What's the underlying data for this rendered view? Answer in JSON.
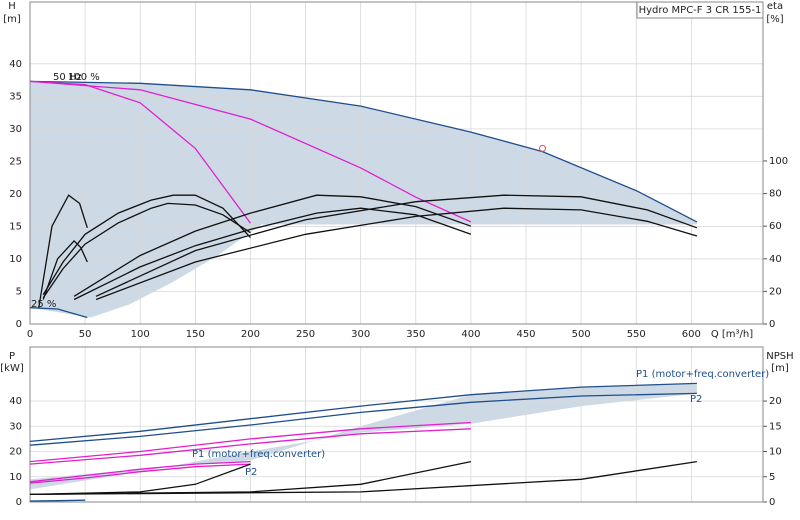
{
  "chart_data": [
    {
      "type": "line",
      "title": "Hydro MPC-F 3 CR 155-1",
      "ylabel": "H",
      "ylabel_unit": "[m]",
      "y2label": "eta",
      "y2label_unit": "[%]",
      "xlabel": "Q [m³/h]",
      "annotations": [
        "50 Hz",
        "100 %",
        "25 %"
      ],
      "xlim": [
        0,
        665
      ],
      "ylim": [
        0,
        49.5
      ],
      "y2lim": [
        0,
        197.5
      ],
      "xticks": [
        0,
        50,
        100,
        150,
        200,
        250,
        300,
        350,
        400,
        450,
        500,
        550,
        600
      ],
      "show_xtick_labels": true,
      "yticks": [
        0,
        5,
        10,
        15,
        20,
        25,
        30,
        35,
        40
      ],
      "y2ticks": [
        0,
        20,
        40,
        60,
        80,
        100
      ],
      "grid": true,
      "region": {
        "color": "#cdd9e5",
        "x": [
          0,
          100,
          200,
          300,
          400,
          465,
          550,
          605,
          605,
          400,
          210,
          170,
          130,
          90,
          55,
          0,
          0
        ],
        "values": [
          37.3,
          37,
          36,
          33.5,
          29.5,
          26.5,
          20.5,
          15.7,
          15.3,
          15.3,
          15.3,
          10.5,
          6.5,
          3,
          1,
          2.5,
          37.3
        ]
      },
      "series": [
        {
          "color": "#1f4e8c",
          "x": [
            0,
            100,
            200,
            300,
            400,
            465,
            550,
            605
          ],
          "values": [
            37.3,
            37,
            36,
            33.5,
            29.5,
            26.5,
            20.5,
            15.7
          ]
        },
        {
          "color": "#e020d0",
          "x": [
            0,
            50,
            100,
            150,
            200
          ],
          "values": [
            37.3,
            36.8,
            34,
            27,
            15.5
          ]
        },
        {
          "color": "#e020d0",
          "x": [
            0,
            100,
            200,
            300,
            350,
            400
          ],
          "values": [
            37.3,
            36,
            31.5,
            24,
            19.5,
            15.7
          ]
        },
        {
          "color": "#1f4e8c",
          "x": [
            0,
            25,
            52
          ],
          "values": [
            2.5,
            2.3,
            1
          ]
        },
        {
          "color": "#111111",
          "axis": "y2",
          "x": [
            8,
            20,
            35,
            45,
            52
          ],
          "values": [
            10,
            60,
            79,
            74,
            59
          ]
        },
        {
          "color": "#111111",
          "axis": "y2",
          "x": [
            12,
            25,
            40,
            46,
            52
          ],
          "values": [
            15,
            40,
            51,
            47,
            38
          ]
        },
        {
          "color": "#111111",
          "axis": "y2",
          "x": [
            12,
            30,
            50,
            80,
            110,
            130,
            150,
            175,
            200
          ],
          "values": [
            18,
            38,
            55,
            68,
            76,
            79,
            79,
            71,
            53
          ]
        },
        {
          "color": "#111111",
          "axis": "y2",
          "x": [
            12,
            30,
            50,
            80,
            110,
            125,
            150,
            175,
            200
          ],
          "values": [
            16,
            34,
            49,
            62,
            71,
            74,
            73,
            67,
            56
          ]
        },
        {
          "color": "#111111",
          "axis": "y2",
          "x": [
            40,
            100,
            150,
            200,
            260,
            300,
            350,
            400
          ],
          "values": [
            17,
            42,
            57,
            68,
            79,
            78,
            72,
            60
          ]
        },
        {
          "color": "#111111",
          "axis": "y2",
          "x": [
            40,
            100,
            150,
            200,
            260,
            300,
            350,
            400
          ],
          "values": [
            15,
            35,
            48,
            58,
            68,
            71,
            67,
            55
          ]
        },
        {
          "color": "#111111",
          "axis": "y2",
          "x": [
            60,
            150,
            250,
            350,
            430,
            500,
            560,
            605
          ],
          "values": [
            17,
            45,
            64,
            75,
            79,
            78,
            70,
            59
          ]
        },
        {
          "color": "#111111",
          "axis": "y2",
          "x": [
            60,
            150,
            250,
            350,
            430,
            500,
            560,
            605
          ],
          "values": [
            15,
            38,
            55,
            66,
            71,
            70,
            63,
            54
          ]
        }
      ],
      "marker": {
        "x": 465,
        "y": 27,
        "color": "#e05050"
      }
    },
    {
      "type": "line",
      "ylabel": "P",
      "ylabel_unit": "[kW]",
      "y2label": "NPSH",
      "y2label_unit": "[m]",
      "annotations": [
        "P1 (motor+freq.converter)",
        "P2",
        "P1 (motor+freq.converter)",
        "P2"
      ],
      "xlim": [
        0,
        665
      ],
      "ylim": [
        0,
        61.4
      ],
      "y2lim": [
        0,
        30.7
      ],
      "xticks": [
        0,
        50,
        100,
        150,
        200,
        250,
        300,
        350,
        400,
        450,
        500,
        550,
        600
      ],
      "show_xtick_labels": false,
      "yticks": [
        0,
        10,
        20,
        30,
        40
      ],
      "y2ticks": [
        0,
        5,
        10,
        15,
        20
      ],
      "grid": true,
      "region": {
        "color": "#cdd9e5",
        "x": [
          0,
          100,
          200,
          300,
          400,
          500,
          605,
          605,
          500,
          400,
          300,
          200,
          100,
          0
        ],
        "values": [
          9,
          13,
          16.5,
          30,
          42.5,
          45.5,
          47,
          43,
          38,
          31,
          27.5,
          20,
          12,
          5
        ]
      },
      "series": [
        {
          "color": "#1f4e8c",
          "x": [
            0,
            100,
            200,
            300,
            400,
            500,
            605
          ],
          "values": [
            24,
            28,
            33,
            38,
            42.5,
            45.5,
            47
          ]
        },
        {
          "color": "#1f4e8c",
          "x": [
            0,
            100,
            200,
            300,
            400,
            500,
            605
          ],
          "values": [
            22.5,
            26,
            30.5,
            35.5,
            39.5,
            42,
            43
          ]
        },
        {
          "color": "#e020d0",
          "x": [
            0,
            100,
            200,
            300,
            400
          ],
          "values": [
            16,
            20,
            25,
            29,
            31.5
          ]
        },
        {
          "color": "#e020d0",
          "x": [
            0,
            100,
            200,
            300,
            400
          ],
          "values": [
            15,
            18.5,
            23,
            27,
            29
          ]
        },
        {
          "color": "#e020d0",
          "x": [
            0,
            50,
            100,
            150,
            200
          ],
          "values": [
            8,
            10.5,
            13,
            15,
            16
          ]
        },
        {
          "color": "#e020d0",
          "x": [
            0,
            50,
            100,
            150,
            200
          ],
          "values": [
            7.5,
            9.5,
            12,
            14,
            15
          ]
        },
        {
          "color": "#1f4e8c",
          "x": [
            0,
            25,
            50
          ],
          "values": [
            0.4,
            0.5,
            0.7
          ]
        },
        {
          "color": "#111111",
          "axis": "y2",
          "x": [
            0,
            100,
            150,
            200
          ],
          "values": [
            1.5,
            2,
            3.5,
            7.5
          ]
        },
        {
          "color": "#111111",
          "axis": "y2",
          "x": [
            0,
            200,
            300,
            400
          ],
          "values": [
            1.5,
            2,
            3.5,
            8
          ]
        },
        {
          "color": "#111111",
          "axis": "y2",
          "x": [
            0,
            300,
            500,
            605
          ],
          "values": [
            1.5,
            2,
            4.5,
            8
          ]
        }
      ]
    }
  ]
}
